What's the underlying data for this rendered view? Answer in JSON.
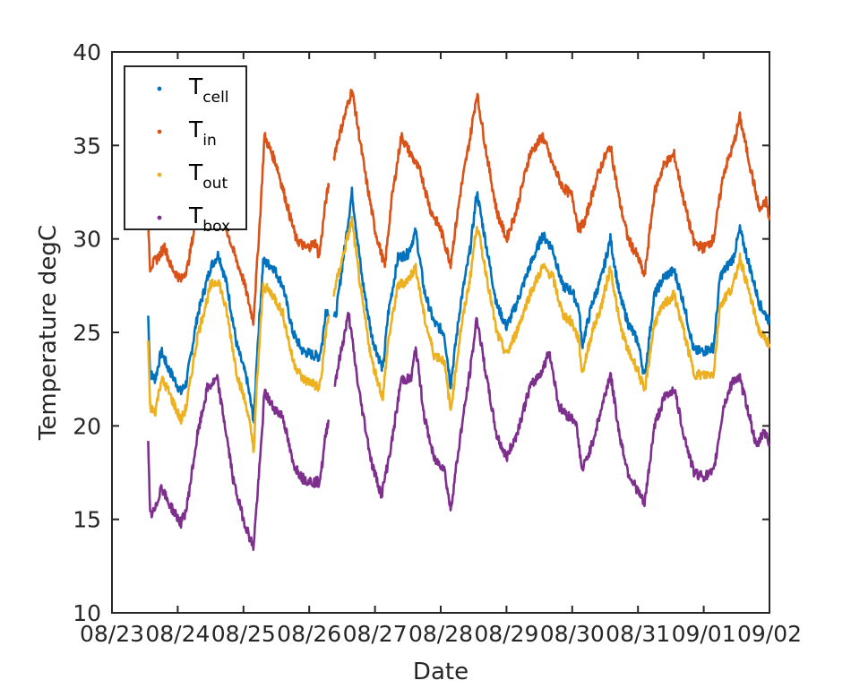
{
  "chart_data": {
    "type": "line",
    "xlabel": "Date",
    "ylabel": "Temperature degC",
    "ylim": [
      10,
      40
    ],
    "yticks": [
      10,
      15,
      20,
      25,
      30,
      35,
      40
    ],
    "xlim": [
      "08/23",
      "09/02"
    ],
    "xticks": [
      "08/23",
      "08/24",
      "08/25",
      "08/26",
      "08/27",
      "08/28",
      "08/29",
      "08/30",
      "08/31",
      "09/01",
      "09/02"
    ],
    "grid": false,
    "legend_position": "top-left",
    "series": [
      {
        "name": "T_cell",
        "legend_main": "T",
        "legend_sub": "cell",
        "color": "#0072BD",
        "points": [
          [
            0.55,
            25.9
          ],
          [
            0.58,
            22.8
          ],
          [
            0.66,
            22.5
          ],
          [
            0.75,
            24.0
          ],
          [
            0.84,
            23.2
          ],
          [
            1.05,
            21.8
          ],
          [
            1.13,
            22.3
          ],
          [
            1.3,
            25.9
          ],
          [
            1.5,
            28.5
          ],
          [
            1.62,
            29.2
          ],
          [
            1.75,
            27.5
          ],
          [
            1.9,
            24.3
          ],
          [
            2.05,
            22.5
          ],
          [
            2.16,
            20.2
          ],
          [
            2.2,
            23.5
          ],
          [
            2.3,
            28.8
          ],
          [
            2.45,
            28.5
          ],
          [
            2.6,
            27.5
          ],
          [
            2.75,
            25.0
          ],
          [
            2.9,
            24.0
          ],
          [
            3.05,
            23.8
          ],
          [
            3.15,
            23.7
          ],
          [
            3.2,
            24.5
          ],
          [
            3.25,
            26.2
          ],
          [
            3.4,
            25.8
          ],
          [
            3.65,
            32.5
          ],
          [
            3.8,
            28.0
          ],
          [
            3.95,
            24.8
          ],
          [
            4.12,
            23.0
          ],
          [
            4.2,
            26.0
          ],
          [
            4.35,
            29.0
          ],
          [
            4.5,
            29.2
          ],
          [
            4.62,
            30.4
          ],
          [
            4.75,
            27.2
          ],
          [
            4.9,
            25.5
          ],
          [
            5.05,
            25.0
          ],
          [
            5.15,
            22.2
          ],
          [
            5.3,
            26.5
          ],
          [
            5.45,
            29.5
          ],
          [
            5.55,
            32.5
          ],
          [
            5.7,
            29.5
          ],
          [
            5.85,
            26.5
          ],
          [
            6.0,
            25.3
          ],
          [
            6.15,
            26.5
          ],
          [
            6.35,
            28.5
          ],
          [
            6.55,
            30.2
          ],
          [
            6.7,
            29.5
          ],
          [
            6.85,
            27.5
          ],
          [
            7.0,
            27.2
          ],
          [
            7.1,
            26.3
          ],
          [
            7.15,
            24.3
          ],
          [
            7.3,
            26.5
          ],
          [
            7.45,
            28.0
          ],
          [
            7.58,
            30.0
          ],
          [
            7.72,
            27.0
          ],
          [
            7.85,
            25.5
          ],
          [
            8.0,
            24.5
          ],
          [
            8.1,
            22.6
          ],
          [
            8.25,
            27.0
          ],
          [
            8.4,
            28.0
          ],
          [
            8.55,
            28.3
          ],
          [
            8.7,
            26.5
          ],
          [
            8.85,
            24.0
          ],
          [
            9.0,
            24.0
          ],
          [
            9.15,
            24.2
          ],
          [
            9.25,
            28.0
          ],
          [
            9.45,
            29.0
          ],
          [
            9.55,
            30.5
          ],
          [
            9.7,
            28.5
          ],
          [
            9.85,
            26.5
          ],
          [
            10.0,
            25.6
          ]
        ]
      },
      {
        "name": "T_in",
        "legend_main": "T",
        "legend_sub": "in",
        "color": "#D95319",
        "points": [
          [
            0.55,
            31.0
          ],
          [
            0.58,
            28.5
          ],
          [
            0.7,
            29.0
          ],
          [
            0.8,
            29.6
          ],
          [
            0.9,
            28.5
          ],
          [
            1.05,
            27.8
          ],
          [
            1.15,
            28.5
          ],
          [
            1.3,
            31.5
          ],
          [
            1.45,
            33.5
          ],
          [
            1.6,
            33.5
          ],
          [
            1.7,
            31.0
          ],
          [
            1.85,
            29.3
          ],
          [
            2.0,
            27.8
          ],
          [
            2.15,
            25.6
          ],
          [
            2.25,
            31.0
          ],
          [
            2.32,
            35.5
          ],
          [
            2.5,
            34.0
          ],
          [
            2.65,
            32.0
          ],
          [
            2.8,
            30.0
          ],
          [
            2.95,
            29.5
          ],
          [
            3.1,
            29.8
          ],
          [
            3.15,
            29.0
          ],
          [
            3.25,
            32.0
          ],
          [
            3.4,
            34.8
          ],
          [
            3.65,
            38.0
          ],
          [
            3.85,
            33.5
          ],
          [
            4.0,
            30.5
          ],
          [
            4.15,
            28.5
          ],
          [
            4.25,
            32.0
          ],
          [
            4.4,
            35.5
          ],
          [
            4.55,
            34.5
          ],
          [
            4.7,
            33.5
          ],
          [
            4.85,
            31.5
          ],
          [
            5.0,
            30.5
          ],
          [
            5.15,
            28.7
          ],
          [
            5.3,
            32.5
          ],
          [
            5.45,
            35.5
          ],
          [
            5.55,
            37.8
          ],
          [
            5.7,
            34.5
          ],
          [
            5.85,
            31.5
          ],
          [
            6.0,
            30.0
          ],
          [
            6.15,
            31.5
          ],
          [
            6.35,
            34.5
          ],
          [
            6.55,
            35.5
          ],
          [
            6.7,
            34.0
          ],
          [
            6.85,
            32.8
          ],
          [
            7.0,
            32.3
          ],
          [
            7.1,
            30.5
          ],
          [
            7.2,
            31.0
          ],
          [
            7.35,
            33.0
          ],
          [
            7.45,
            34.0
          ],
          [
            7.58,
            35.0
          ],
          [
            7.72,
            32.0
          ],
          [
            7.85,
            30.0
          ],
          [
            8.0,
            29.0
          ],
          [
            8.1,
            28.0
          ],
          [
            8.25,
            32.5
          ],
          [
            8.4,
            34.0
          ],
          [
            8.55,
            34.5
          ],
          [
            8.7,
            32.0
          ],
          [
            8.85,
            29.8
          ],
          [
            9.0,
            29.5
          ],
          [
            9.15,
            30.0
          ],
          [
            9.3,
            33.5
          ],
          [
            9.45,
            35.0
          ],
          [
            9.55,
            36.5
          ],
          [
            9.7,
            34.0
          ],
          [
            9.85,
            31.5
          ],
          [
            9.95,
            32.0
          ],
          [
            10.0,
            31.0
          ]
        ]
      },
      {
        "name": "T_out",
        "legend_main": "T",
        "legend_sub": "out",
        "color": "#EDB120",
        "points": [
          [
            0.55,
            24.5
          ],
          [
            0.58,
            21.0
          ],
          [
            0.66,
            20.8
          ],
          [
            0.75,
            22.5
          ],
          [
            0.84,
            22.0
          ],
          [
            1.05,
            20.3
          ],
          [
            1.13,
            21.0
          ],
          [
            1.3,
            24.8
          ],
          [
            1.5,
            27.5
          ],
          [
            1.62,
            27.8
          ],
          [
            1.75,
            26.0
          ],
          [
            1.9,
            22.8
          ],
          [
            2.05,
            21.0
          ],
          [
            2.16,
            18.7
          ],
          [
            2.2,
            22.0
          ],
          [
            2.3,
            27.5
          ],
          [
            2.45,
            27.0
          ],
          [
            2.6,
            26.0
          ],
          [
            2.75,
            23.5
          ],
          [
            2.9,
            22.5
          ],
          [
            3.05,
            22.3
          ],
          [
            3.15,
            22.0
          ],
          [
            3.2,
            23.0
          ],
          [
            3.25,
            25.0
          ],
          [
            3.4,
            27.5
          ],
          [
            3.65,
            31.0
          ],
          [
            3.8,
            26.8
          ],
          [
            3.95,
            23.5
          ],
          [
            4.12,
            21.5
          ],
          [
            4.2,
            24.5
          ],
          [
            4.35,
            27.5
          ],
          [
            4.5,
            27.8
          ],
          [
            4.62,
            28.5
          ],
          [
            4.75,
            25.8
          ],
          [
            4.9,
            23.8
          ],
          [
            5.05,
            23.5
          ],
          [
            5.15,
            20.8
          ],
          [
            5.3,
            25.0
          ],
          [
            5.45,
            28.0
          ],
          [
            5.55,
            30.8
          ],
          [
            5.7,
            28.0
          ],
          [
            5.85,
            25.0
          ],
          [
            6.0,
            23.8
          ],
          [
            6.15,
            25.0
          ],
          [
            6.35,
            27.0
          ],
          [
            6.55,
            28.5
          ],
          [
            6.7,
            28.0
          ],
          [
            6.85,
            26.0
          ],
          [
            7.0,
            25.5
          ],
          [
            7.1,
            24.6
          ],
          [
            7.15,
            22.8
          ],
          [
            7.3,
            25.0
          ],
          [
            7.45,
            26.5
          ],
          [
            7.58,
            28.5
          ],
          [
            7.72,
            25.5
          ],
          [
            7.85,
            24.0
          ],
          [
            8.0,
            23.0
          ],
          [
            8.1,
            21.8
          ],
          [
            8.25,
            25.5
          ],
          [
            8.4,
            26.5
          ],
          [
            8.55,
            27.0
          ],
          [
            8.7,
            25.0
          ],
          [
            8.85,
            22.8
          ],
          [
            9.0,
            22.7
          ],
          [
            9.15,
            22.8
          ],
          [
            9.25,
            26.5
          ],
          [
            9.45,
            27.5
          ],
          [
            9.55,
            29.0
          ],
          [
            9.7,
            27.0
          ],
          [
            9.85,
            25.0
          ],
          [
            10.0,
            24.4
          ]
        ]
      },
      {
        "name": "T_box",
        "legend_main": "T",
        "legend_sub": "box",
        "color": "#7E2F8E",
        "points": [
          [
            0.55,
            19.0
          ],
          [
            0.58,
            15.2
          ],
          [
            0.66,
            15.5
          ],
          [
            0.75,
            16.8
          ],
          [
            0.84,
            16.0
          ],
          [
            1.05,
            14.8
          ],
          [
            1.13,
            15.5
          ],
          [
            1.3,
            19.5
          ],
          [
            1.45,
            22.0
          ],
          [
            1.6,
            22.5
          ],
          [
            1.72,
            20.0
          ],
          [
            1.85,
            17.0
          ],
          [
            2.0,
            15.0
          ],
          [
            2.15,
            13.5
          ],
          [
            2.25,
            18.0
          ],
          [
            2.32,
            21.8
          ],
          [
            2.45,
            21.0
          ],
          [
            2.6,
            20.5
          ],
          [
            2.75,
            18.0
          ],
          [
            2.9,
            17.2
          ],
          [
            3.05,
            17.0
          ],
          [
            3.15,
            17.0
          ],
          [
            3.2,
            18.0
          ],
          [
            3.25,
            19.5
          ],
          [
            3.4,
            22.5
          ],
          [
            3.6,
            26.0
          ],
          [
            3.75,
            22.0
          ],
          [
            3.95,
            18.0
          ],
          [
            4.1,
            16.3
          ],
          [
            4.25,
            19.0
          ],
          [
            4.4,
            22.5
          ],
          [
            4.55,
            22.5
          ],
          [
            4.62,
            24.2
          ],
          [
            4.75,
            20.5
          ],
          [
            4.9,
            18.2
          ],
          [
            5.05,
            17.8
          ],
          [
            5.15,
            15.5
          ],
          [
            5.3,
            19.5
          ],
          [
            5.45,
            23.0
          ],
          [
            5.55,
            25.8
          ],
          [
            5.7,
            22.5
          ],
          [
            5.85,
            19.5
          ],
          [
            6.0,
            18.3
          ],
          [
            6.15,
            19.5
          ],
          [
            6.35,
            22.0
          ],
          [
            6.55,
            23.0
          ],
          [
            6.65,
            24.0
          ],
          [
            6.8,
            21.0
          ],
          [
            6.95,
            20.5
          ],
          [
            7.05,
            20.3
          ],
          [
            7.1,
            19.0
          ],
          [
            7.15,
            17.6
          ],
          [
            7.3,
            19.0
          ],
          [
            7.45,
            21.0
          ],
          [
            7.58,
            22.8
          ],
          [
            7.72,
            19.5
          ],
          [
            7.85,
            17.5
          ],
          [
            8.0,
            16.5
          ],
          [
            8.1,
            15.8
          ],
          [
            8.25,
            20.0
          ],
          [
            8.4,
            21.5
          ],
          [
            8.55,
            22.0
          ],
          [
            8.7,
            19.5
          ],
          [
            8.85,
            17.5
          ],
          [
            9.0,
            17.3
          ],
          [
            9.15,
            17.5
          ],
          [
            9.3,
            21.0
          ],
          [
            9.45,
            22.5
          ],
          [
            9.55,
            22.5
          ],
          [
            9.7,
            20.5
          ],
          [
            9.8,
            18.8
          ],
          [
            9.92,
            19.8
          ],
          [
            10.0,
            19.0
          ]
        ]
      }
    ],
    "gaps": [
      [
        3.3,
        3.37
      ]
    ]
  }
}
